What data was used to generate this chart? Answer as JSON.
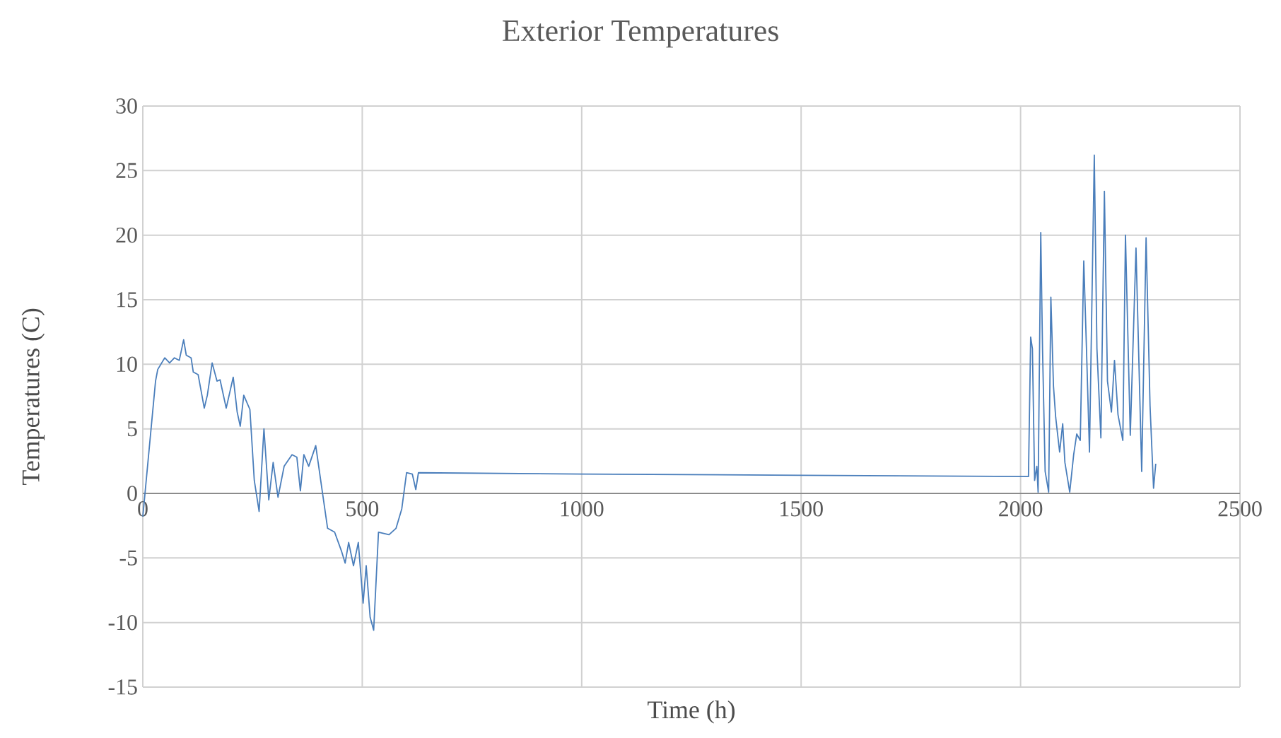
{
  "chart_data": {
    "type": "line",
    "title": "Exterior Temperatures",
    "xlabel": "Time (h)",
    "ylabel": "Temperatures (C)",
    "xlim": [
      0,
      2500
    ],
    "xticks": [
      0,
      500,
      1000,
      1500,
      2000,
      2500
    ],
    "ylim": [
      -15,
      30
    ],
    "yticks": [
      -15,
      -10,
      -5,
      0,
      5,
      10,
      15,
      20,
      25,
      30
    ],
    "grid": true,
    "marker": "none",
    "line_style": "solid",
    "series": [
      {
        "color": "#4a7ebb",
        "x": [
          0,
          29,
          34,
          50,
          61,
          72,
          83,
          93,
          99,
          110,
          115,
          126,
          140,
          147,
          158,
          169,
          176,
          190,
          206,
          215,
          222,
          230,
          244,
          254,
          265,
          276,
          287,
          297,
          308,
          322,
          340,
          351,
          359,
          367,
          378,
          394,
          410,
          421,
          437,
          453,
          461,
          469,
          480,
          491,
          502,
          509,
          518,
          526,
          537,
          561,
          577,
          590,
          601,
          614,
          622,
          628,
          1000,
          1500,
          2018,
          2023,
          2027,
          2032,
          2037,
          2040,
          2046,
          2050,
          2056,
          2064,
          2069,
          2075,
          2080,
          2089,
          2096,
          2101,
          2112,
          2121,
          2128,
          2136,
          2144,
          2150,
          2157,
          2168,
          2174,
          2183,
          2191,
          2198,
          2207,
          2214,
          2222,
          2233,
          2239,
          2250,
          2263,
          2276,
          2286,
          2295,
          2303,
          2308
        ],
        "values": [
          -1.8,
          8.7,
          9.6,
          10.5,
          10.1,
          10.5,
          10.3,
          11.9,
          10.7,
          10.5,
          9.4,
          9.2,
          6.6,
          7.6,
          10.1,
          8.7,
          8.8,
          6.6,
          9.0,
          6.3,
          5.2,
          7.6,
          6.5,
          1.0,
          -1.4,
          5.0,
          -0.5,
          2.4,
          -0.3,
          2.1,
          3.0,
          2.8,
          0.2,
          3.0,
          2.1,
          3.7,
          -0.1,
          -2.7,
          -3.0,
          -4.5,
          -5.4,
          -3.8,
          -5.6,
          -3.8,
          -8.5,
          -5.6,
          -9.6,
          -10.6,
          -3.0,
          -3.2,
          -2.7,
          -1.2,
          1.6,
          1.5,
          0.3,
          1.6,
          1.5,
          1.4,
          1.3,
          12.1,
          11.2,
          1.0,
          2.1,
          0.1,
          20.2,
          11.2,
          1.7,
          0.1,
          15.2,
          8.3,
          5.9,
          3.2,
          5.4,
          2.4,
          0.1,
          3.0,
          4.6,
          4.1,
          18.0,
          11.4,
          3.2,
          26.2,
          11.2,
          4.3,
          23.4,
          8.7,
          6.3,
          10.3,
          6.1,
          4.1,
          20.0,
          4.5,
          19.0,
          1.7,
          19.8,
          6.8,
          0.4,
          2.3
        ]
      }
    ]
  }
}
